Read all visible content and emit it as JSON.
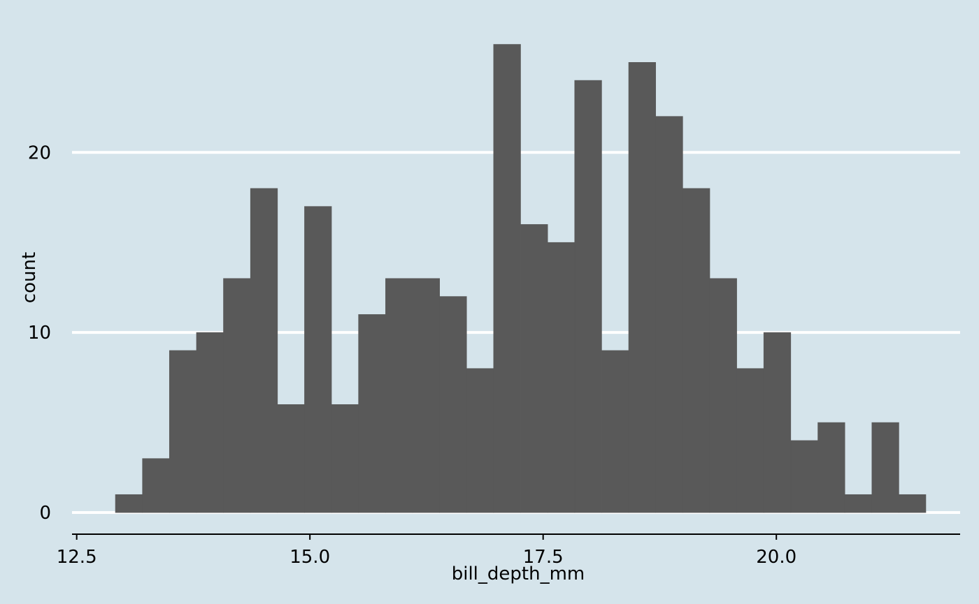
{
  "chart_data": {
    "type": "bar",
    "title": "",
    "xlabel": "bill_depth_mm",
    "ylabel": "count",
    "bin_width": 0.2896,
    "bins": [
      {
        "x_start": 12.915,
        "count": 1
      },
      {
        "x_start": 13.205,
        "count": 3
      },
      {
        "x_start": 13.494,
        "count": 9
      },
      {
        "x_start": 13.784,
        "count": 10
      },
      {
        "x_start": 14.073,
        "count": 13
      },
      {
        "x_start": 14.363,
        "count": 18
      },
      {
        "x_start": 14.653,
        "count": 6
      },
      {
        "x_start": 14.942,
        "count": 17
      },
      {
        "x_start": 15.232,
        "count": 6
      },
      {
        "x_start": 15.521,
        "count": 11
      },
      {
        "x_start": 15.811,
        "count": 13
      },
      {
        "x_start": 16.101,
        "count": 13
      },
      {
        "x_start": 16.39,
        "count": 12
      },
      {
        "x_start": 16.68,
        "count": 8
      },
      {
        "x_start": 16.969,
        "count": 26
      },
      {
        "x_start": 17.259,
        "count": 16
      },
      {
        "x_start": 17.549,
        "count": 15
      },
      {
        "x_start": 17.838,
        "count": 24
      },
      {
        "x_start": 18.128,
        "count": 9
      },
      {
        "x_start": 18.417,
        "count": 25
      },
      {
        "x_start": 18.707,
        "count": 22
      },
      {
        "x_start": 18.997,
        "count": 18
      },
      {
        "x_start": 19.286,
        "count": 13
      },
      {
        "x_start": 19.576,
        "count": 8
      },
      {
        "x_start": 19.865,
        "count": 10
      },
      {
        "x_start": 20.155,
        "count": 4
      },
      {
        "x_start": 20.445,
        "count": 5
      },
      {
        "x_start": 20.734,
        "count": 1
      },
      {
        "x_start": 21.024,
        "count": 5
      },
      {
        "x_start": 21.313,
        "count": 1
      }
    ],
    "x_ticks": [
      {
        "value": 12.5,
        "label": "12.5"
      },
      {
        "value": 15.0,
        "label": "15.0"
      },
      {
        "value": 17.5,
        "label": "17.5"
      },
      {
        "value": 20.0,
        "label": "20.0"
      }
    ],
    "y_ticks": [
      {
        "value": 0,
        "label": "0"
      },
      {
        "value": 10,
        "label": "10"
      },
      {
        "value": 20,
        "label": "20"
      }
    ],
    "xlim": [
      12.45,
      21.97
    ],
    "ylim": [
      -1.2,
      27.3
    ],
    "grid": "horizontal major lines",
    "colors": {
      "background": "#d5e4eb",
      "bar": "#595959",
      "grid": "#ffffff",
      "axis": "#000000"
    }
  }
}
